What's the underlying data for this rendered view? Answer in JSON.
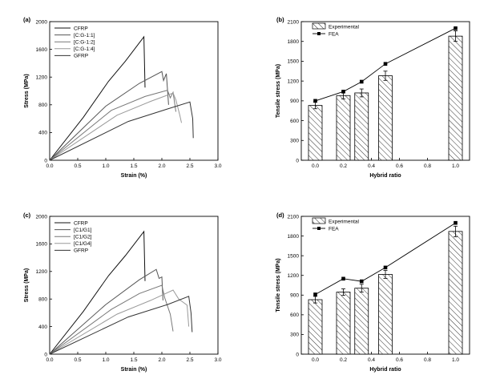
{
  "chart_data": [
    {
      "type": "line",
      "panel": "(a)",
      "xlabel": "Strain (%)",
      "ylabel": "Stress (MPa)",
      "xlim": [
        0,
        3.0
      ],
      "ylim": [
        0,
        2000
      ],
      "xticks": [
        0.0,
        0.5,
        1.0,
        1.5,
        2.0,
        2.5,
        3.0
      ],
      "xtick_labels": [
        "0.0",
        "0.5",
        "1.0",
        "1.5",
        "2.0",
        "2.5",
        "3.0"
      ],
      "yticks": [
        0,
        400,
        800,
        1200,
        1600,
        2000
      ],
      "ytick_labels": [
        "0",
        "400",
        "800",
        "1200",
        "1600",
        "2000"
      ],
      "legend": "top-left",
      "series": [
        {
          "name": "CFRP",
          "color": "#111111",
          "points": [
            [
              0,
              0
            ],
            [
              0.6,
              620
            ],
            [
              1.05,
              1140
            ],
            [
              1.35,
              1430
            ],
            [
              1.68,
              1780
            ],
            [
              1.7,
              1050
            ]
          ]
        },
        {
          "name": "[C:G-1:1]",
          "color": "#555555",
          "points": [
            [
              0,
              0
            ],
            [
              1.0,
              780
            ],
            [
              1.6,
              1110
            ],
            [
              2.0,
              1280
            ],
            [
              2.03,
              1150
            ],
            [
              2.08,
              1250
            ],
            [
              2.12,
              800
            ]
          ]
        },
        {
          "name": "[C:G-1:2]",
          "color": "#777777",
          "points": [
            [
              0,
              0
            ],
            [
              1.1,
              720
            ],
            [
              1.7,
              920
            ],
            [
              2.1,
              1010
            ],
            [
              2.15,
              900
            ],
            [
              2.2,
              980
            ],
            [
              2.25,
              700
            ]
          ]
        },
        {
          "name": "[C:G-1:4]",
          "color": "#999999",
          "points": [
            [
              0,
              0
            ],
            [
              1.2,
              650
            ],
            [
              1.8,
              850
            ],
            [
              2.2,
              970
            ],
            [
              2.25,
              870
            ],
            [
              2.32,
              650
            ],
            [
              2.35,
              540
            ]
          ]
        },
        {
          "name": "GFRP",
          "color": "#333333",
          "points": [
            [
              0,
              0
            ],
            [
              1.4,
              560
            ],
            [
              2.1,
              740
            ],
            [
              2.5,
              840
            ],
            [
              2.55,
              600
            ],
            [
              2.56,
              320
            ]
          ]
        }
      ]
    },
    {
      "type": "bar",
      "panel": "(b)",
      "xlabel": "Hybrid ratio",
      "ylabel": "Tensile stress (MPa)",
      "xlim": [
        -0.1,
        1.1
      ],
      "ylim": [
        0,
        2100
      ],
      "xticks": [
        0.0,
        0.2,
        0.4,
        0.6,
        0.8,
        1.0
      ],
      "xtick_labels": [
        "0.0",
        "0.2",
        "0.4",
        "0.6",
        "0.8",
        "1.0"
      ],
      "yticks": [
        0,
        300,
        600,
        900,
        1200,
        1500,
        1800,
        2100
      ],
      "ytick_labels": [
        "0",
        "300",
        "600",
        "900",
        "1200",
        "1500",
        "1800",
        "2100"
      ],
      "legend": "top-left",
      "x": [
        0.0,
        0.2,
        0.33,
        0.5,
        1.0
      ],
      "series": [
        {
          "name": "Experimental",
          "kind": "bar",
          "values": [
            830,
            980,
            1020,
            1280,
            1880
          ],
          "errors": [
            50,
            50,
            60,
            70,
            80
          ]
        },
        {
          "name": "FEA",
          "kind": "line",
          "values": [
            900,
            1040,
            1190,
            1460,
            2000
          ]
        }
      ]
    },
    {
      "type": "line",
      "panel": "(c)",
      "xlabel": "Strain (%)",
      "ylabel": "Stress (MPa)",
      "xlim": [
        0,
        3.0
      ],
      "ylim": [
        0,
        2000
      ],
      "xticks": [
        0.0,
        0.5,
        1.0,
        1.5,
        2.0,
        2.5,
        3.0
      ],
      "xtick_labels": [
        "0.0",
        "0.5",
        "1.0",
        "1.5",
        "2.0",
        "2.5",
        "3.0"
      ],
      "yticks": [
        0,
        400,
        800,
        1200,
        1600,
        2000
      ],
      "ytick_labels": [
        "0",
        "400",
        "800",
        "1200",
        "1600",
        "2000"
      ],
      "legend": "top-left",
      "series": [
        {
          "name": "CFRP",
          "color": "#111111",
          "points": [
            [
              0,
              0
            ],
            [
              0.6,
              620
            ],
            [
              1.05,
              1140
            ],
            [
              1.35,
              1430
            ],
            [
              1.68,
              1780
            ],
            [
              1.7,
              1060
            ]
          ]
        },
        {
          "name": "[C1/G1]",
          "color": "#555555",
          "points": [
            [
              0,
              0
            ],
            [
              1.0,
              720
            ],
            [
              1.6,
              1080
            ],
            [
              1.9,
              1230
            ],
            [
              1.95,
              1100
            ],
            [
              2.0,
              1120
            ],
            [
              2.02,
              780
            ]
          ]
        },
        {
          "name": "[C1/G2]",
          "color": "#777777",
          "points": [
            [
              0,
              0
            ],
            [
              1.1,
              650
            ],
            [
              1.6,
              880
            ],
            [
              2.0,
              1000
            ],
            [
              2.05,
              820
            ],
            [
              2.15,
              580
            ],
            [
              2.2,
              330
            ]
          ]
        },
        {
          "name": "[C1/G4]",
          "color": "#999999",
          "points": [
            [
              0,
              0
            ],
            [
              1.2,
              580
            ],
            [
              1.8,
              780
            ],
            [
              2.2,
              930
            ],
            [
              2.3,
              800
            ],
            [
              2.45,
              710
            ],
            [
              2.48,
              400
            ]
          ]
        },
        {
          "name": "GFRP",
          "color": "#333333",
          "points": [
            [
              0,
              0
            ],
            [
              1.4,
              540
            ],
            [
              2.1,
              720
            ],
            [
              2.48,
              840
            ],
            [
              2.52,
              600
            ],
            [
              2.54,
              320
            ]
          ]
        }
      ]
    },
    {
      "type": "bar",
      "panel": "(d)",
      "xlabel": "Hybrid ratio",
      "ylabel": "Tensile stress (MPa)",
      "xlim": [
        -0.1,
        1.1
      ],
      "ylim": [
        0,
        2100
      ],
      "xticks": [
        0.0,
        0.2,
        0.4,
        0.6,
        0.8,
        1.0
      ],
      "xtick_labels": [
        "0.0",
        "0.2",
        "0.4",
        "0.6",
        "0.8",
        "1.0"
      ],
      "yticks": [
        0,
        300,
        600,
        900,
        1200,
        1500,
        1800,
        2100
      ],
      "ytick_labels": [
        "0",
        "300",
        "600",
        "900",
        "1200",
        "1500",
        "1800",
        "2100"
      ],
      "legend": "top-left",
      "x": [
        0.0,
        0.2,
        0.33,
        0.5,
        1.0
      ],
      "series": [
        {
          "name": "Experimental",
          "kind": "bar",
          "values": [
            830,
            945,
            1005,
            1215,
            1870
          ],
          "errors": [
            50,
            50,
            60,
            60,
            80
          ]
        },
        {
          "name": "FEA",
          "kind": "line",
          "values": [
            910,
            1150,
            1110,
            1320,
            2000
          ]
        }
      ]
    }
  ]
}
